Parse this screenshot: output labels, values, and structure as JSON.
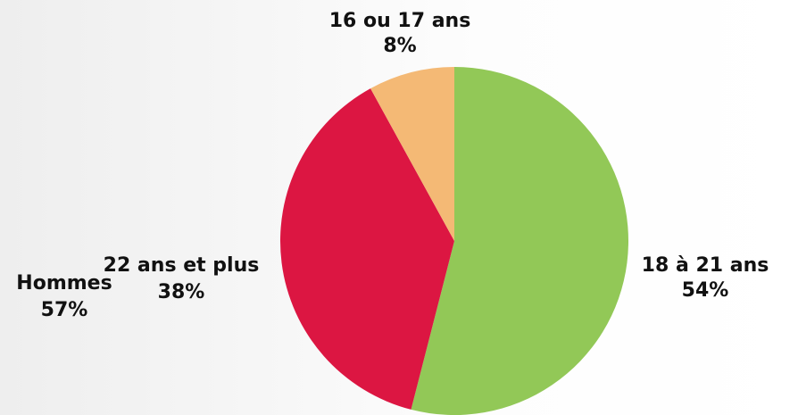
{
  "chart_data": {
    "type": "pie",
    "categories": [
      "18 à 21 ans",
      "22 ans et plus",
      "16 ou 17 ans"
    ],
    "values": [
      54,
      38,
      8
    ],
    "value_labels": [
      "54%",
      "38%",
      "8%"
    ],
    "colors": [
      "#92c857",
      "#dc1642",
      "#f4b975"
    ],
    "annotations": [
      {
        "text": "Hommes",
        "value": 57,
        "value_label": "57%"
      }
    ]
  }
}
